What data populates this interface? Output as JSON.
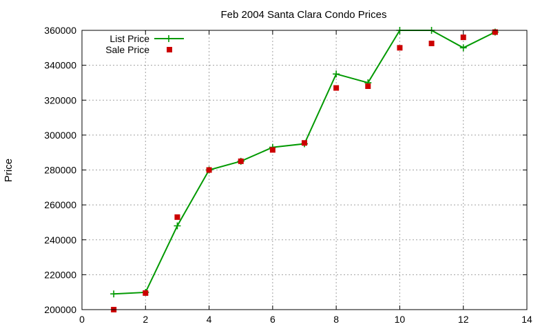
{
  "chart_data": {
    "type": "line",
    "title": "Feb 2004 Santa Clara Condo Prices",
    "xlabel": "",
    "ylabel": "Price",
    "xlim": [
      0,
      14
    ],
    "ylim": [
      200000,
      360000
    ],
    "xticks": [
      0,
      2,
      4,
      6,
      8,
      10,
      12,
      14
    ],
    "yticks": [
      200000,
      220000,
      240000,
      260000,
      280000,
      300000,
      320000,
      340000,
      360000
    ],
    "grid": true,
    "legend_position": "top-left",
    "series": [
      {
        "name": "List Price",
        "style": "line-with-plus",
        "color": "#009900",
        "x": [
          1,
          2,
          3,
          4,
          5,
          6,
          7,
          8,
          9,
          10,
          11,
          12,
          13
        ],
        "y": [
          209000,
          209900,
          248000,
          280000,
          285000,
          293000,
          295000,
          335000,
          330000,
          360000,
          360000,
          350000,
          359000
        ]
      },
      {
        "name": "Sale Price",
        "style": "square-points",
        "color": "#cc0000",
        "x": [
          1,
          2,
          3,
          4,
          5,
          6,
          7,
          8,
          9,
          10,
          11,
          12,
          13
        ],
        "y": [
          200000,
          209500,
          253000,
          280000,
          285000,
          291500,
          295500,
          327000,
          328000,
          350000,
          352500,
          356000,
          359000
        ]
      }
    ]
  }
}
